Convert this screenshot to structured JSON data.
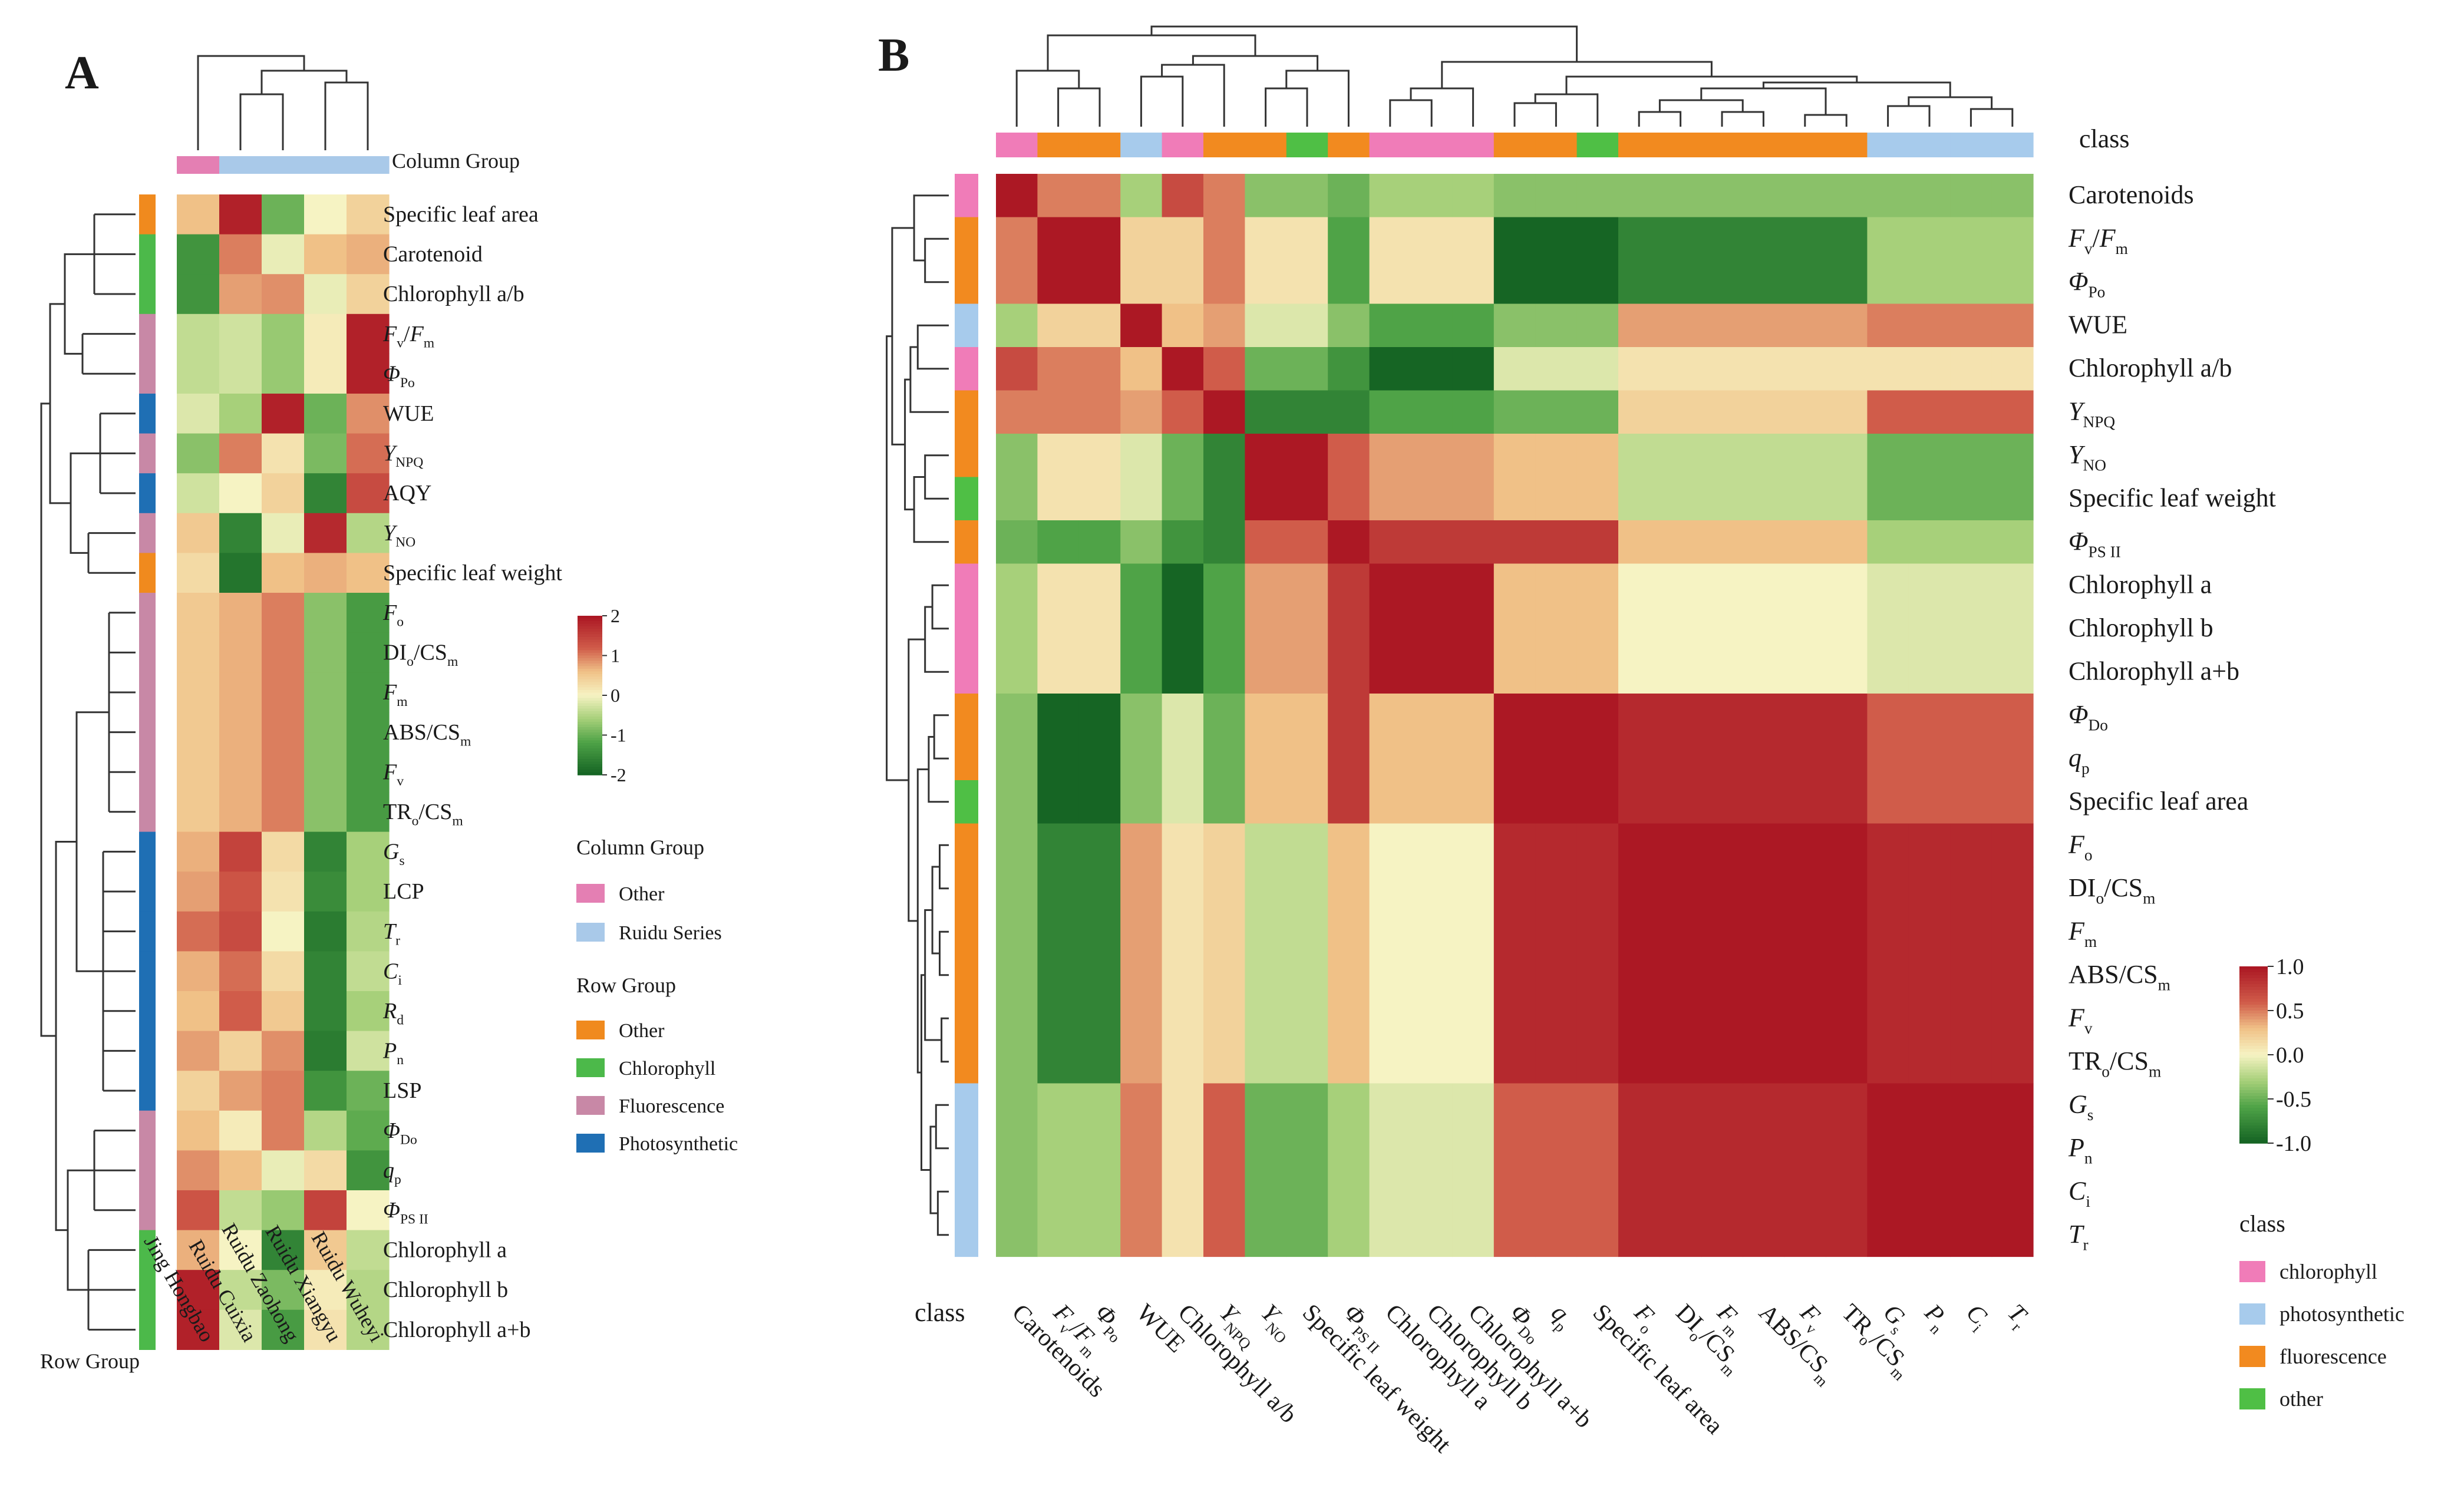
{
  "chart_data": [
    {
      "type": "heatmap",
      "panel_label": "A",
      "column_group_label": "Column Group",
      "row_group_label": "Row Group",
      "columns": [
        "Jing Hongbao",
        "Ruidu Cuixia",
        "Ruidu Zaohong",
        "Ruidu Xiangyu",
        "Ruidu Wuheyi"
      ],
      "column_groups": [
        "Other",
        "Ruidu Series",
        "Ruidu Series",
        "Ruidu Series",
        "Ruidu Series"
      ],
      "rows": [
        {
          "label": "Specific leaf area",
          "group": "Other",
          "values": [
            0.6,
            1.9,
            -1.0,
            0.0,
            0.4
          ]
        },
        {
          "label": "Carotenoid",
          "group": "Chlorophyll",
          "values": [
            -1.4,
            1.0,
            -0.1,
            0.6,
            0.7
          ]
        },
        {
          "label": "Chlorophyll a/b",
          "group": "Chlorophyll",
          "values": [
            -1.4,
            0.8,
            0.9,
            -0.1,
            0.4
          ]
        },
        {
          "label": "Fv/Fm",
          "group": "Fluorescence",
          "values": [
            -0.4,
            -0.3,
            -0.7,
            0.1,
            1.9
          ]
        },
        {
          "label": "ΦPo",
          "group": "Fluorescence",
          "values": [
            -0.4,
            -0.3,
            -0.7,
            0.1,
            1.9
          ]
        },
        {
          "label": "WUE",
          "group": "Photosynthetic",
          "values": [
            -0.2,
            -0.6,
            1.9,
            -1.0,
            0.9
          ]
        },
        {
          "label": "YNPQ",
          "group": "Fluorescence",
          "values": [
            -0.8,
            1.0,
            0.2,
            -0.9,
            1.1
          ]
        },
        {
          "label": "AQY",
          "group": "Photosynthetic",
          "values": [
            -0.3,
            0.0,
            0.4,
            -1.6,
            1.4
          ]
        },
        {
          "label": "YNO",
          "group": "Fluorescence",
          "values": [
            0.5,
            -1.6,
            -0.1,
            1.8,
            -0.5
          ]
        },
        {
          "label": "Specific leaf weight",
          "group": "Other",
          "values": [
            0.3,
            -1.8,
            0.6,
            0.7,
            0.6
          ]
        },
        {
          "label": "Fo",
          "group": "Fluorescence",
          "values": [
            0.5,
            0.7,
            1.0,
            -0.8,
            -1.3
          ]
        },
        {
          "label": "DIo/CSm",
          "group": "Fluorescence",
          "values": [
            0.5,
            0.7,
            1.0,
            -0.8,
            -1.3
          ]
        },
        {
          "label": "Fm",
          "group": "Fluorescence",
          "values": [
            0.5,
            0.7,
            1.0,
            -0.8,
            -1.3
          ]
        },
        {
          "label": "ABS/CSm",
          "group": "Fluorescence",
          "values": [
            0.5,
            0.7,
            1.0,
            -0.8,
            -1.3
          ]
        },
        {
          "label": "Fv",
          "group": "Fluorescence",
          "values": [
            0.5,
            0.7,
            1.0,
            -0.8,
            -1.3
          ]
        },
        {
          "label": "TRo/CSm",
          "group": "Fluorescence",
          "values": [
            0.5,
            0.7,
            1.0,
            -0.8,
            -1.3
          ]
        },
        {
          "label": "Gs",
          "group": "Photosynthetic",
          "values": [
            0.7,
            1.5,
            0.3,
            -1.6,
            -0.6
          ]
        },
        {
          "label": "LCP",
          "group": "Photosynthetic",
          "values": [
            0.8,
            1.3,
            0.2,
            -1.5,
            -0.6
          ]
        },
        {
          "label": "Tr",
          "group": "Photosynthetic",
          "values": [
            1.1,
            1.4,
            0.0,
            -1.7,
            -0.5
          ]
        },
        {
          "label": "Ci",
          "group": "Photosynthetic",
          "values": [
            0.7,
            1.1,
            0.3,
            -1.6,
            -0.4
          ]
        },
        {
          "label": "Rd",
          "group": "Photosynthetic",
          "values": [
            0.6,
            1.2,
            0.5,
            -1.6,
            -0.6
          ]
        },
        {
          "label": "Pn",
          "group": "Photosynthetic",
          "values": [
            0.8,
            0.4,
            0.9,
            -1.7,
            -0.3
          ]
        },
        {
          "label": "LSP",
          "group": "Photosynthetic",
          "values": [
            0.4,
            0.8,
            1.0,
            -1.4,
            -1.0
          ]
        },
        {
          "label": "ΦDo",
          "group": "Fluorescence",
          "values": [
            0.6,
            0.1,
            1.0,
            -0.5,
            -1.1
          ]
        },
        {
          "label": "qp",
          "group": "Fluorescence",
          "values": [
            0.9,
            0.6,
            -0.1,
            0.3,
            -1.4
          ]
        },
        {
          "label": "ΦPSII",
          "group": "Fluorescence",
          "values": [
            1.3,
            -0.4,
            -0.7,
            1.5,
            0.0
          ]
        },
        {
          "label": "Chlorophyll a",
          "group": "Chlorophyll",
          "values": [
            0.7,
            0.0,
            -1.6,
            0.5,
            -0.4
          ]
        },
        {
          "label": "Chlorophyll b",
          "group": "Chlorophyll",
          "values": [
            1.9,
            -0.4,
            -0.9,
            0.1,
            -0.5
          ]
        },
        {
          "label": "Chlorophyll a+b",
          "group": "Chlorophyll",
          "values": [
            1.9,
            -0.2,
            -1.3,
            0.2,
            -0.5
          ]
        }
      ],
      "colorbar": {
        "min": -2,
        "max": 2,
        "ticks": [
          2,
          1,
          0,
          -1,
          -2
        ],
        "tick_labels": [
          "2",
          "1",
          "0",
          "-1",
          "-2"
        ]
      },
      "legend": {
        "column_title": "Column Group",
        "column_items": [
          {
            "label": "Other",
            "color": "#e47fb3"
          },
          {
            "label": "Ruidu Series",
            "color": "#a9c9e9"
          }
        ],
        "row_title": "Row Group",
        "row_items": [
          {
            "label": "Other",
            "color": "#f08a1e"
          },
          {
            "label": "Chlorophyll",
            "color": "#4cb94a"
          },
          {
            "label": "Fluorescence",
            "color": "#c888a6"
          },
          {
            "label": "Photosynthetic",
            "color": "#1f6fb4"
          }
        ]
      }
    },
    {
      "type": "heatmap",
      "panel_label": "B",
      "class_label": "class",
      "variables": [
        {
          "label": "Carotenoids",
          "cls": "chlorophyll",
          "grp": 0
        },
        {
          "label": "Fv/Fm",
          "cls": "fluorescence",
          "grp": 1
        },
        {
          "label": "ΦPo",
          "cls": "fluorescence",
          "grp": 1
        },
        {
          "label": "WUE",
          "cls": "photosynthetic",
          "grp": 2
        },
        {
          "label": "Chlorophyll a/b",
          "cls": "chlorophyll",
          "grp": 3
        },
        {
          "label": "YNPQ",
          "cls": "fluorescence",
          "grp": 4
        },
        {
          "label": "YNO",
          "cls": "fluorescence",
          "grp": 5
        },
        {
          "label": "Specific leaf weight",
          "cls": "other",
          "grp": 5
        },
        {
          "label": "ΦPSII",
          "cls": "fluorescence",
          "grp": 6
        },
        {
          "label": "Chlorophyll a",
          "cls": "chlorophyll",
          "grp": 7
        },
        {
          "label": "Chlorophyll b",
          "cls": "chlorophyll",
          "grp": 7
        },
        {
          "label": "Chlorophyll a+b",
          "cls": "chlorophyll",
          "grp": 7
        },
        {
          "label": "ΦDo",
          "cls": "fluorescence",
          "grp": 8
        },
        {
          "label": "qp",
          "cls": "fluorescence",
          "grp": 8
        },
        {
          "label": "Specific leaf area",
          "cls": "other",
          "grp": 8
        },
        {
          "label": "Fo",
          "cls": "fluorescence",
          "grp": 9
        },
        {
          "label": "DIo/CSm",
          "cls": "fluorescence",
          "grp": 9
        },
        {
          "label": "Fm",
          "cls": "fluorescence",
          "grp": 9
        },
        {
          "label": "ABS/CSm",
          "cls": "fluorescence",
          "grp": 9
        },
        {
          "label": "Fv",
          "cls": "fluorescence",
          "grp": 9
        },
        {
          "label": "TRo/CSm",
          "cls": "fluorescence",
          "grp": 9
        },
        {
          "label": "Gs",
          "cls": "photosynthetic",
          "grp": 10
        },
        {
          "label": "Pn",
          "cls": "photosynthetic",
          "grp": 10
        },
        {
          "label": "Ci",
          "cls": "photosynthetic",
          "grp": 10
        },
        {
          "label": "Tr",
          "cls": "photosynthetic",
          "grp": 10
        }
      ],
      "group_correlation": [
        [
          1.0,
          0.5,
          -0.3,
          0.7,
          0.5,
          -0.4,
          -0.5,
          -0.3,
          -0.4,
          -0.4,
          -0.4
        ],
        [
          0.5,
          1.0,
          0.2,
          0.2,
          0.5,
          0.1,
          -0.6,
          0.1,
          -1.0,
          -0.8,
          -0.3
        ],
        [
          -0.3,
          0.2,
          1.0,
          0.3,
          0.4,
          -0.1,
          -0.4,
          -0.6,
          -0.4,
          0.4,
          0.5
        ],
        [
          0.7,
          0.5,
          0.3,
          1.0,
          0.6,
          -0.5,
          -0.7,
          -1.0,
          -0.1,
          0.1,
          0.1
        ],
        [
          0.5,
          0.5,
          0.4,
          0.6,
          1.0,
          -0.8,
          -0.8,
          -0.6,
          -0.5,
          0.2,
          0.6
        ],
        [
          -0.4,
          0.1,
          -0.1,
          -0.5,
          -0.8,
          1.0,
          0.6,
          0.4,
          0.3,
          -0.2,
          -0.5
        ],
        [
          -0.5,
          -0.6,
          -0.4,
          -0.7,
          -0.8,
          0.6,
          1.0,
          0.8,
          0.8,
          0.3,
          -0.3
        ],
        [
          -0.3,
          0.1,
          -0.6,
          -1.0,
          -0.6,
          0.4,
          0.8,
          1.0,
          0.3,
          0.0,
          -0.1
        ],
        [
          -0.4,
          -1.0,
          -0.4,
          -0.1,
          -0.5,
          0.3,
          0.8,
          0.3,
          1.0,
          0.9,
          0.6
        ],
        [
          -0.4,
          -0.8,
          0.4,
          0.1,
          0.2,
          -0.2,
          0.3,
          0.0,
          0.9,
          1.0,
          0.9
        ],
        [
          -0.4,
          -0.3,
          0.5,
          0.1,
          0.6,
          -0.5,
          -0.3,
          -0.1,
          0.6,
          0.9,
          1.0
        ]
      ],
      "colorbar": {
        "min": -1,
        "max": 1,
        "ticks": [
          1.0,
          0.5,
          0.0,
          -0.5,
          -1.0
        ],
        "tick_labels": [
          "1.0",
          "0.5",
          "0.0",
          "-0.5",
          "-1.0"
        ]
      },
      "legend": {
        "title": "class",
        "items": [
          {
            "key": "chlorophyll",
            "label": "chlorophyll",
            "color": "#f07cb8"
          },
          {
            "key": "photosynthetic",
            "label": "photosynthetic",
            "color": "#a7cbec"
          },
          {
            "key": "fluorescence",
            "label": "fluorescence",
            "color": "#f28a1f"
          },
          {
            "key": "other",
            "label": "other",
            "color": "#4fbf45"
          }
        ]
      }
    }
  ]
}
